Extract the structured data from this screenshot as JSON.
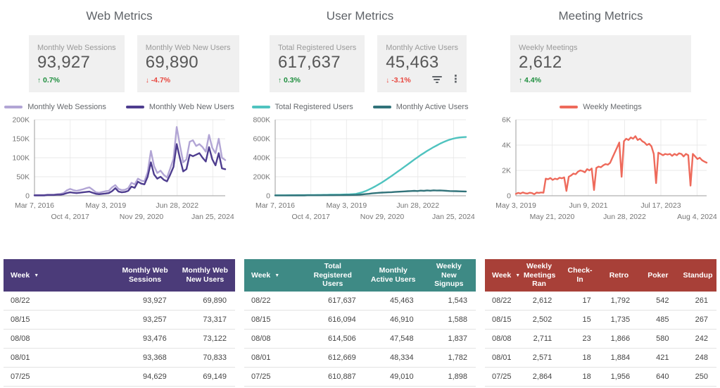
{
  "icons": {
    "sort_arrow": "▼",
    "filter": "filter-lines",
    "more_options": "kebab-dots",
    "trend_up": "↑",
    "trend_down": "↓"
  },
  "columns": [
    {
      "title": "Web Metrics",
      "scorecards": [
        {
          "label": "Monthly Web Sessions",
          "value": "93,927",
          "delta": "0.7%",
          "direction": "up"
        },
        {
          "label": "Monthly Web New Users",
          "value": "69,890",
          "delta": "-4.7%",
          "direction": "down"
        }
      ],
      "legend": [
        {
          "label": "Monthly Web Sessions",
          "color": "#b2a5d5"
        },
        {
          "label": "Monthly Web New Users",
          "color": "#4e3d8f"
        }
      ],
      "table": {
        "accent": "#4b3b79",
        "columns": [
          "Week",
          "Monthly Web Sessions",
          "Monthly Web New Users"
        ],
        "rows": [
          [
            "08/22",
            "93,927",
            "69,890"
          ],
          [
            "08/15",
            "93,257",
            "73,317"
          ],
          [
            "08/08",
            "93,476",
            "73,122"
          ],
          [
            "08/01",
            "93,368",
            "70,833"
          ],
          [
            "07/25",
            "94,629",
            "69,149"
          ]
        ]
      }
    },
    {
      "title": "User Metrics",
      "scorecards": [
        {
          "label": "Total Registered Users",
          "value": "617,637",
          "delta": "0.3%",
          "direction": "up"
        },
        {
          "label": "Monthly Active Users",
          "value": "45,463",
          "delta": "-3.1%",
          "direction": "down"
        }
      ],
      "legend": [
        {
          "label": "Total Registered Users",
          "color": "#4fc3bf"
        },
        {
          "label": "Monthly Active Users",
          "color": "#31737a"
        }
      ],
      "table": {
        "accent": "#3e8a85",
        "columns": [
          "Week",
          "Total Registered Users",
          "Monthly Active Users",
          "Weekly New Signups"
        ],
        "rows": [
          [
            "08/22",
            "617,637",
            "45,463",
            "1,543"
          ],
          [
            "08/15",
            "616,094",
            "46,910",
            "1,588"
          ],
          [
            "08/08",
            "614,506",
            "47,548",
            "1,837"
          ],
          [
            "08/01",
            "612,669",
            "48,334",
            "1,782"
          ],
          [
            "07/25",
            "610,887",
            "49,010",
            "1,898"
          ]
        ]
      }
    },
    {
      "title": "Meeting Metrics",
      "scorecards": [
        {
          "label": "Weekly Meetings",
          "value": "2,612",
          "delta": "4.4%",
          "direction": "up"
        }
      ],
      "legend": [
        {
          "label": "Weekly Meetings",
          "color": "#ee6a5b"
        }
      ],
      "table": {
        "accent": "#a84038",
        "columns": [
          "Week",
          "Weekly Meetings Ran",
          "Check-In",
          "Retro",
          "Poker",
          "Standup"
        ],
        "rows": [
          [
            "08/22",
            "2,612",
            "17",
            "1,792",
            "542",
            "261"
          ],
          [
            "08/15",
            "2,502",
            "15",
            "1,735",
            "485",
            "267"
          ],
          [
            "08/08",
            "2,711",
            "23",
            "1,866",
            "580",
            "242"
          ],
          [
            "08/01",
            "2,571",
            "18",
            "1,884",
            "421",
            "248"
          ],
          [
            "07/25",
            "2,864",
            "18",
            "1,956",
            "640",
            "250"
          ]
        ]
      }
    }
  ],
  "chart_data": [
    {
      "type": "line",
      "title": "Web Metrics weekly time series",
      "ylim": [
        0,
        200000
      ],
      "grid": true,
      "legend_position": "top",
      "y_ticks": [
        {
          "v": 0,
          "label": "0"
        },
        {
          "v": 50000,
          "label": "50K"
        },
        {
          "v": 100000,
          "label": "100K"
        },
        {
          "v": 150000,
          "label": "150K"
        },
        {
          "v": 200000,
          "label": "200K"
        }
      ],
      "x_ticks": [
        {
          "label": "Mar 7, 2016",
          "f": 0
        },
        {
          "label": "Oct 4, 2017",
          "f": 0.187
        },
        {
          "label": "May 3, 2019",
          "f": 0.374
        },
        {
          "label": "Nov 29, 2020",
          "f": 0.561
        },
        {
          "label": "Jun 28, 2022",
          "f": 0.748
        },
        {
          "label": "Jan 25, 2024",
          "f": 0.935
        }
      ],
      "series": [
        {
          "name": "Monthly Web Sessions",
          "color": "#b2a5d5",
          "values": [
            2000,
            2000,
            2000,
            2000,
            3000,
            3000,
            3000,
            4000,
            5000,
            7000,
            14000,
            18000,
            15000,
            13000,
            15000,
            17000,
            20000,
            22000,
            16000,
            9000,
            8000,
            10000,
            12000,
            13000,
            22000,
            28000,
            18000,
            15000,
            16000,
            20000,
            34000,
            30000,
            45000,
            40000,
            38000,
            62000,
            118000,
            78000,
            60000,
            66000,
            55000,
            48000,
            72000,
            97000,
            181000,
            132000,
            88000,
            96000,
            142000,
            146000,
            131000,
            136000,
            128000,
            116000,
            160000,
            126000,
            112000,
            150000,
            100000,
            93927
          ]
        },
        {
          "name": "Monthly Web New Users",
          "color": "#4e3d8f",
          "values": [
            1000,
            1000,
            1000,
            1000,
            2000,
            2000,
            2000,
            3000,
            3000,
            4000,
            7000,
            9000,
            8000,
            7000,
            8000,
            9000,
            10000,
            11000,
            8000,
            5000,
            4000,
            5000,
            6000,
            7000,
            12000,
            20000,
            11000,
            9000,
            10000,
            13000,
            24000,
            21000,
            37000,
            32000,
            30000,
            50000,
            88000,
            56000,
            45000,
            50000,
            42000,
            38000,
            56000,
            76000,
            136000,
            98000,
            64000,
            70000,
            108000,
            104000,
            108000,
            112000,
            100000,
            90000,
            128000,
            96000,
            80000,
            112000,
            72000,
            69890
          ]
        }
      ]
    },
    {
      "type": "line",
      "title": "User Metrics weekly time series",
      "ylim": [
        0,
        800000
      ],
      "grid": true,
      "legend_position": "top",
      "y_ticks": [
        {
          "v": 0,
          "label": "0"
        },
        {
          "v": 200000,
          "label": "200K"
        },
        {
          "v": 400000,
          "label": "400K"
        },
        {
          "v": 600000,
          "label": "600K"
        },
        {
          "v": 800000,
          "label": "800K"
        }
      ],
      "x_ticks": [
        {
          "label": "Mar 7, 2016",
          "f": 0
        },
        {
          "label": "Oct 4, 2017",
          "f": 0.187
        },
        {
          "label": "May 3, 2019",
          "f": 0.374
        },
        {
          "label": "Nov 29, 2020",
          "f": 0.561
        },
        {
          "label": "Jun 28, 2022",
          "f": 0.748
        },
        {
          "label": "Jan 25, 2024",
          "f": 0.935
        }
      ],
      "series": [
        {
          "name": "Total Registered Users",
          "color": "#4fc3bf",
          "values": [
            5000,
            5000,
            5000,
            5000,
            6000,
            6000,
            6000,
            7000,
            7000,
            7000,
            8000,
            8000,
            8000,
            9000,
            9000,
            10000,
            10000,
            11000,
            11000,
            12000,
            12000,
            13000,
            14000,
            15000,
            17000,
            20000,
            28000,
            38000,
            50000,
            65000,
            82000,
            100000,
            120000,
            140000,
            162000,
            185000,
            208000,
            232000,
            256000,
            280000,
            305000,
            330000,
            355000,
            380000,
            404000,
            428000,
            450000,
            472000,
            492000,
            512000,
            530000,
            548000,
            564000,
            578000,
            590000,
            600000,
            608000,
            613000,
            616000,
            617637
          ]
        },
        {
          "name": "Monthly Active Users",
          "color": "#31737a",
          "values": [
            3000,
            3000,
            3000,
            3000,
            3000,
            4000,
            4000,
            4000,
            4000,
            4000,
            5000,
            5000,
            5000,
            5000,
            5000,
            6000,
            6000,
            6000,
            6000,
            7000,
            7000,
            7000,
            8000,
            8000,
            9000,
            10000,
            12000,
            15000,
            18000,
            21000,
            25000,
            28000,
            31000,
            33000,
            35000,
            36000,
            38000,
            40000,
            42000,
            44000,
            46000,
            48000,
            50000,
            52000,
            50000,
            54000,
            52000,
            56000,
            53000,
            57000,
            55000,
            56000,
            54000,
            52000,
            50000,
            49000,
            48000,
            47000,
            46000,
            45463
          ]
        }
      ]
    },
    {
      "type": "line",
      "title": "Meeting Metrics weekly time series",
      "ylim": [
        0,
        6000
      ],
      "grid": true,
      "legend_position": "top",
      "y_ticks": [
        {
          "v": 0,
          "label": "0"
        },
        {
          "v": 2000,
          "label": "2K"
        },
        {
          "v": 4000,
          "label": "4K"
        },
        {
          "v": 6000,
          "label": "6K"
        }
      ],
      "x_ticks": [
        {
          "label": "May 3, 2019",
          "f": 0
        },
        {
          "label": "May 21, 2020",
          "f": 0.19
        },
        {
          "label": "Jun 9, 2021",
          "f": 0.38
        },
        {
          "label": "Jun 28, 2022",
          "f": 0.57
        },
        {
          "label": "Jul 17, 2023",
          "f": 0.76
        },
        {
          "label": "Aug 4, 2024",
          "f": 0.95
        }
      ],
      "series": [
        {
          "name": "Weekly Meetings",
          "color": "#ee6a5b",
          "values": [
            150,
            230,
            180,
            260,
            200,
            170,
            240,
            210,
            120,
            250,
            230,
            260,
            240,
            1350,
            1300,
            1400,
            1250,
            1350,
            1300,
            1420,
            1380,
            1450,
            380,
            1500,
            1600,
            1750,
            1700,
            1900,
            2000,
            1950,
            1850,
            2100,
            2000,
            2150,
            450,
            2200,
            2300,
            2250,
            2400,
            2500,
            2450,
            2600,
            3000,
            3400,
            3800,
            4200,
            1500,
            4300,
            4500,
            4400,
            4600,
            4500,
            4700,
            4400,
            4500,
            4300,
            4200,
            4000,
            4100,
            3900,
            3300,
            1000,
            3400,
            3300,
            3200,
            3300,
            3250,
            3300,
            3150,
            3300,
            3200,
            3350,
            3300,
            3100,
            3300,
            3200,
            800,
            3300,
            3100,
            2900,
            3000,
            2800,
            2700,
            2612
          ]
        }
      ]
    }
  ]
}
